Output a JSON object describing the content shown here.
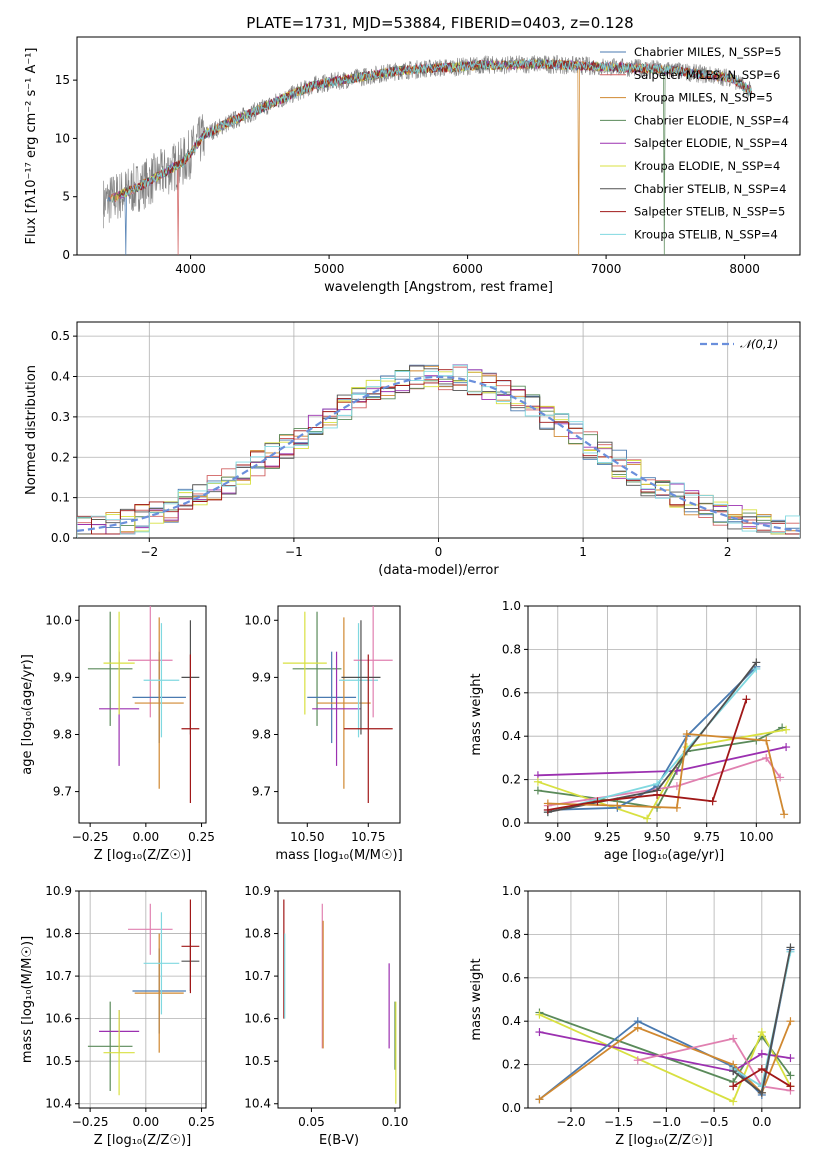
{
  "chart_data": [
    {
      "id": "spectrum",
      "type": "line",
      "title": "PLATE=1731, MJD=53884, FIBERID=0403, z=0.128",
      "xlabel": "wavelength [Angstrom, rest frame]",
      "ylabel": "Flux [fλ10⁻¹⁷ erg cm⁻² s⁻¹ A⁻¹]",
      "xlim": [
        3180,
        8400
      ],
      "ylim": [
        0,
        18.7
      ],
      "xticks": [
        4000,
        5000,
        6000,
        7000,
        8000
      ],
      "yticks": [
        0,
        5,
        10,
        15
      ],
      "grid": false,
      "legend_position": "top-right",
      "data_series": {
        "name": "data",
        "color": "#808080",
        "x": [
          3370,
          3500,
          3650,
          3800,
          3950,
          4100,
          4300,
          4500,
          4700,
          4900,
          5100,
          5300,
          5500,
          5700,
          5900,
          6100,
          6300,
          6500,
          6700,
          6900,
          7100,
          7300,
          7500,
          7700,
          7900,
          8050
        ],
        "y": [
          4.5,
          5.2,
          6.0,
          7.0,
          8.0,
          10.3,
          11.5,
          12.5,
          13.6,
          14.6,
          15.0,
          15.4,
          15.8,
          16.0,
          16.1,
          16.3,
          16.3,
          16.4,
          16.3,
          16.2,
          16.1,
          16.0,
          15.8,
          15.5,
          15.2,
          14.0
        ]
      },
      "models": [
        {
          "name": "Chabrier MILES, N_SSP=5",
          "color": "#4a7ab0"
        },
        {
          "name": "Salpeter MILES, N_SSP=6",
          "color": "#d06060"
        },
        {
          "name": "Kroupa MILES, N_SSP=5",
          "color": "#d08830"
        },
        {
          "name": "Chabrier ELODIE, N_SSP=4",
          "color": "#5a8a5a"
        },
        {
          "name": "Salpeter ELODIE, N_SSP=4",
          "color": "#9b30b0"
        },
        {
          "name": "Kroupa ELODIE, N_SSP=4",
          "color": "#d8e040"
        },
        {
          "name": "Chabrier STELIB, N_SSP=4",
          "color": "#505050"
        },
        {
          "name": "Salpeter STELIB, N_SSP=5",
          "color": "#a01818"
        },
        {
          "name": "Kroupa STELIB, N_SSP=4",
          "color": "#80d8e0"
        }
      ],
      "model_cutoffs_angstrom": [
        3530,
        3910,
        6800,
        7420
      ]
    },
    {
      "id": "residuals",
      "type": "histogram",
      "xlabel": "(data-model)/error",
      "ylabel": "Normed distribution",
      "xlim": [
        -2.5,
        2.5
      ],
      "ylim": [
        0,
        0.535
      ],
      "xticks": [
        -2,
        -1,
        0,
        1,
        2
      ],
      "yticks": [
        0.0,
        0.1,
        0.2,
        0.3,
        0.4,
        0.5
      ],
      "grid": true,
      "legend_position": "top-right",
      "reference_curve": {
        "name": "𝒩(0,1)",
        "color": "#6a8fdc",
        "dash": true,
        "mean": 0,
        "std": 1
      },
      "bin_width": 0.1,
      "bin_start": -2.5,
      "series_colors": [
        "#4a7ab0",
        "#d06060",
        "#d08830",
        "#5a8a5a",
        "#9b30b0",
        "#d8e040",
        "#505050",
        "#a01818",
        "#80d8e0"
      ]
    },
    {
      "id": "age_vs_Z",
      "type": "errorbar",
      "xlabel": "Z [log₁₀(Z/Z☉)]",
      "ylabel": "age  [log₁₀(age/yr)]",
      "xlim": [
        -0.3,
        0.27
      ],
      "ylim": [
        9.645,
        10.025
      ],
      "xticks": [
        -0.25,
        0.0,
        0.25
      ],
      "xticklabels": [
        "−0.25",
        "0.00",
        "0.25"
      ],
      "yticks": [
        9.7,
        9.8,
        9.9,
        10.0
      ],
      "grid": false,
      "points": [
        {
          "x": -0.16,
          "xerr": 0.1,
          "y": 9.915,
          "yerr": 0.1,
          "color": "#5a8a5a"
        },
        {
          "x": -0.12,
          "xerr": 0.09,
          "y": 9.845,
          "yerr": 0.1,
          "color": "#9b30b0"
        },
        {
          "x": -0.12,
          "xerr": 0.07,
          "y": 9.925,
          "yerr": 0.09,
          "color": "#d8e040"
        },
        {
          "x": 0.02,
          "xerr": 0.1,
          "y": 9.93,
          "yerr": 0.1,
          "color": "#e080b0"
        },
        {
          "x": 0.06,
          "xerr": 0.12,
          "y": 9.865,
          "yerr": 0.08,
          "color": "#4a7ab0"
        },
        {
          "x": 0.06,
          "xerr": 0.11,
          "y": 9.855,
          "yerr": 0.15,
          "color": "#d08830"
        },
        {
          "x": 0.07,
          "xerr": 0.08,
          "y": 9.895,
          "yerr": 0.1,
          "color": "#80d8e0"
        },
        {
          "x": 0.2,
          "xerr": 0.04,
          "y": 9.9,
          "yerr": 0.1,
          "color": "#505050"
        },
        {
          "x": 0.2,
          "xerr": 0.04,
          "y": 9.81,
          "yerr": 0.13,
          "color": "#a01818"
        }
      ]
    },
    {
      "id": "age_vs_mass",
      "type": "errorbar",
      "xlabel": "mass [log₁₀(M/M☉)]",
      "xlim": [
        10.38,
        10.88
      ],
      "ylim": [
        9.645,
        10.025
      ],
      "xticks": [
        10.5,
        10.75
      ],
      "xticklabels": [
        "10.50",
        "10.75"
      ],
      "yticks": [
        9.7,
        9.8,
        9.9,
        10.0
      ],
      "grid": false,
      "points": [
        {
          "x": 10.54,
          "xerr": 0.1,
          "y": 9.915,
          "yerr": 0.1,
          "color": "#5a8a5a"
        },
        {
          "x": 10.49,
          "xerr": 0.09,
          "y": 9.925,
          "yerr": 0.09,
          "color": "#d8e040"
        },
        {
          "x": 10.6,
          "xerr": 0.1,
          "y": 9.865,
          "yerr": 0.08,
          "color": "#4a7ab0"
        },
        {
          "x": 10.65,
          "xerr": 0.11,
          "y": 9.855,
          "yerr": 0.15,
          "color": "#d08830"
        },
        {
          "x": 10.62,
          "xerr": 0.1,
          "y": 9.845,
          "yerr": 0.1,
          "color": "#9b30b0"
        },
        {
          "x": 10.71,
          "xerr": 0.08,
          "y": 9.895,
          "yerr": 0.1,
          "color": "#80d8e0"
        },
        {
          "x": 10.77,
          "xerr": 0.08,
          "y": 9.93,
          "yerr": 0.1,
          "color": "#e080b0"
        },
        {
          "x": 10.72,
          "xerr": 0.08,
          "y": 9.9,
          "yerr": 0.1,
          "color": "#505050"
        },
        {
          "x": 10.75,
          "xerr": 0.1,
          "y": 9.81,
          "yerr": 0.13,
          "color": "#a01818"
        }
      ]
    },
    {
      "id": "mass_weight_vs_age",
      "type": "line",
      "xlabel": "age  [log₁₀(age/yr)]",
      "ylabel": "mass weight",
      "xlim": [
        8.85,
        10.22
      ],
      "ylim": [
        0,
        1.0
      ],
      "xticks": [
        9.0,
        9.25,
        9.5,
        9.75,
        10.0
      ],
      "xticklabels": [
        "9.00",
        "9.25",
        "9.50",
        "9.75",
        "10.00"
      ],
      "yticks": [
        0.0,
        0.2,
        0.4,
        0.6,
        0.8,
        1.0
      ],
      "grid": true,
      "series": [
        {
          "color": "#5a8a5a",
          "x": [
            8.9,
            9.3,
            9.5,
            9.65,
            10.0,
            10.13
          ],
          "y": [
            0.15,
            0.1,
            0.07,
            0.33,
            0.38,
            0.44
          ]
        },
        {
          "color": "#9b30b0",
          "x": [
            8.9,
            9.6,
            10.15
          ],
          "y": [
            0.22,
            0.24,
            0.35
          ]
        },
        {
          "color": "#d8e040",
          "x": [
            8.9,
            9.45,
            9.65,
            10.15
          ],
          "y": [
            0.19,
            0.02,
            0.35,
            0.43
          ]
        },
        {
          "color": "#e080b0",
          "x": [
            8.95,
            9.6,
            10.05,
            10.12
          ],
          "y": [
            0.08,
            0.17,
            0.3,
            0.21
          ]
        },
        {
          "color": "#4a7ab0",
          "x": [
            8.95,
            9.3,
            9.5,
            9.65,
            10.0
          ],
          "y": [
            0.06,
            0.07,
            0.17,
            0.4,
            0.72
          ]
        },
        {
          "color": "#80d8e0",
          "x": [
            8.95,
            9.5,
            10.0
          ],
          "y": [
            0.05,
            0.18,
            0.71
          ]
        },
        {
          "color": "#505050",
          "x": [
            8.95,
            9.5,
            10.0
          ],
          "y": [
            0.05,
            0.15,
            0.74
          ]
        },
        {
          "color": "#d08830",
          "x": [
            8.95,
            9.3,
            9.6,
            9.65,
            10.05,
            10.14
          ],
          "y": [
            0.09,
            0.08,
            0.07,
            0.41,
            0.38,
            0.04
          ]
        },
        {
          "color": "#a01818",
          "x": [
            8.95,
            9.2,
            9.5,
            9.78,
            9.95
          ],
          "y": [
            0.06,
            0.1,
            0.13,
            0.1,
            0.57
          ]
        }
      ]
    },
    {
      "id": "mass_vs_Z",
      "type": "errorbar",
      "xlabel": "Z [log₁₀(Z/Z☉)]",
      "ylabel": "mass [log₁₀(M/M☉)]",
      "xlim": [
        -0.3,
        0.27
      ],
      "ylim": [
        10.39,
        10.9
      ],
      "xticks": [
        -0.25,
        0.0,
        0.25
      ],
      "xticklabels": [
        "−0.25",
        "0.00",
        "0.25"
      ],
      "yticks": [
        10.4,
        10.5,
        10.6,
        10.7,
        10.8,
        10.9
      ],
      "grid": true,
      "points": [
        {
          "x": -0.16,
          "xerr": 0.1,
          "y": 10.535,
          "yerr": 0.105,
          "color": "#5a8a5a"
        },
        {
          "x": -0.12,
          "xerr": 0.09,
          "y": 10.57,
          "yerr": 0.05,
          "color": "#9b30b0"
        },
        {
          "x": -0.12,
          "xerr": 0.07,
          "y": 10.52,
          "yerr": 0.1,
          "color": "#d8e040"
        },
        {
          "x": 0.02,
          "xerr": 0.1,
          "y": 10.81,
          "yerr": 0.06,
          "color": "#e080b0"
        },
        {
          "x": 0.06,
          "xerr": 0.12,
          "y": 10.665,
          "yerr": 0.1,
          "color": "#4a7ab0"
        },
        {
          "x": 0.06,
          "xerr": 0.11,
          "y": 10.66,
          "yerr": 0.14,
          "color": "#d08830"
        },
        {
          "x": 0.07,
          "xerr": 0.08,
          "y": 10.73,
          "yerr": 0.12,
          "color": "#80d8e0"
        },
        {
          "x": 0.2,
          "xerr": 0.04,
          "y": 10.735,
          "yerr": 0.07,
          "color": "#505050"
        },
        {
          "x": 0.2,
          "xerr": 0.04,
          "y": 10.77,
          "yerr": 0.11,
          "color": "#a01818"
        }
      ]
    },
    {
      "id": "mass_vs_ebv",
      "type": "errorbar",
      "xlabel": "E(B-V)",
      "xlim": [
        0.03,
        0.103
      ],
      "ylim": [
        10.39,
        10.9
      ],
      "xticks": [
        0.05,
        0.1
      ],
      "xticklabels": [
        "0.05",
        "0.10"
      ],
      "yticks": [
        10.4,
        10.5,
        10.6,
        10.7,
        10.8,
        10.9
      ],
      "grid": false,
      "points": [
        {
          "x": 0.0335,
          "y": 10.74,
          "yerr": 0.14,
          "color": "#a01818"
        },
        {
          "x": 0.034,
          "y": 10.7,
          "yerr": 0.1,
          "color": "#80d8e0"
        },
        {
          "x": 0.0565,
          "y": 10.7,
          "yerr": 0.17,
          "color": "#e080b0"
        },
        {
          "x": 0.057,
          "y": 10.68,
          "yerr": 0.15,
          "color": "#d08830"
        },
        {
          "x": 0.0965,
          "y": 10.63,
          "yerr": 0.1,
          "color": "#9b30b0"
        },
        {
          "x": 0.1,
          "y": 10.56,
          "yerr": 0.08,
          "color": "#5a8a5a"
        },
        {
          "x": 0.1005,
          "y": 10.52,
          "yerr": 0.12,
          "color": "#d8e040"
        }
      ]
    },
    {
      "id": "mass_weight_vs_Z",
      "type": "line",
      "xlabel": "Z [log₁₀(Z/Z☉)]",
      "ylabel": "mass weight",
      "xlim": [
        -2.45,
        0.4
      ],
      "ylim": [
        0,
        1.0
      ],
      "xticks": [
        -2.0,
        -1.5,
        -1.0,
        -0.5,
        0.0
      ],
      "xticklabels": [
        "−2.0",
        "−1.5",
        "−1.0",
        "−0.5",
        "0.0"
      ],
      "yticks": [
        0.0,
        0.2,
        0.4,
        0.6,
        0.8,
        1.0
      ],
      "grid": true,
      "series": [
        {
          "color": "#5a8a5a",
          "x": [
            -2.33,
            -0.3,
            0.0,
            0.3
          ],
          "y": [
            0.44,
            0.12,
            0.33,
            0.15
          ]
        },
        {
          "color": "#d8e040",
          "x": [
            -2.33,
            -0.3,
            0.0,
            0.3
          ],
          "y": [
            0.43,
            0.03,
            0.35,
            0.1
          ]
        },
        {
          "color": "#9b30b0",
          "x": [
            -2.33,
            -0.3,
            0.0,
            0.3
          ],
          "y": [
            0.35,
            0.17,
            0.25,
            0.23
          ]
        },
        {
          "color": "#4a7ab0",
          "x": [
            -2.33,
            -1.3,
            -0.3,
            0.0,
            0.3
          ],
          "y": [
            0.04,
            0.4,
            0.19,
            0.06,
            0.73
          ]
        },
        {
          "color": "#d08830",
          "x": [
            -2.33,
            -1.3,
            -0.3,
            0.0,
            0.3
          ],
          "y": [
            0.04,
            0.37,
            0.2,
            0.07,
            0.4
          ]
        },
        {
          "color": "#e080b0",
          "x": [
            -1.3,
            -0.3,
            0.0,
            0.3
          ],
          "y": [
            0.22,
            0.32,
            0.1,
            0.08
          ]
        },
        {
          "color": "#80d8e0",
          "x": [
            -0.3,
            0.0,
            0.3
          ],
          "y": [
            0.18,
            0.1,
            0.72
          ]
        },
        {
          "color": "#505050",
          "x": [
            -0.3,
            0.0,
            0.3
          ],
          "y": [
            0.17,
            0.07,
            0.74
          ]
        },
        {
          "color": "#a01818",
          "x": [
            -0.3,
            0.0,
            0.3
          ],
          "y": [
            0.1,
            0.18,
            0.1
          ]
        }
      ]
    }
  ]
}
